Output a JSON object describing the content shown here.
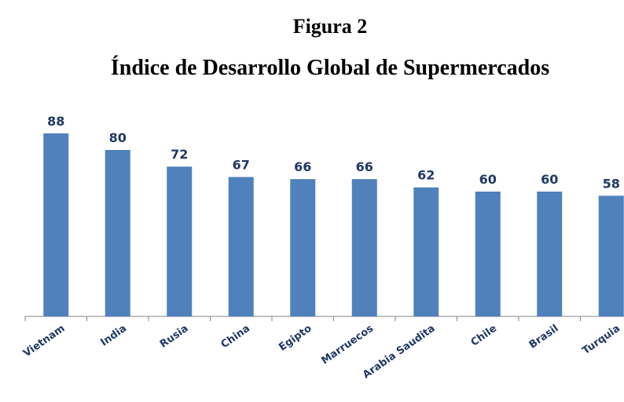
{
  "chart_data": {
    "type": "bar",
    "title": "Figura 2",
    "subtitle": "Índice de Desarrollo Global de Supermercados",
    "categories": [
      "Vietnam",
      "India",
      "Rusia",
      "China",
      "Egipto",
      "Marruecos",
      "Arabia Saudita",
      "Chile",
      "Brasil",
      "Turquia"
    ],
    "values": [
      88,
      80,
      72,
      67,
      66,
      66,
      62,
      60,
      60,
      58
    ],
    "color": "#4f81bd",
    "ylim": [
      0,
      100
    ]
  }
}
